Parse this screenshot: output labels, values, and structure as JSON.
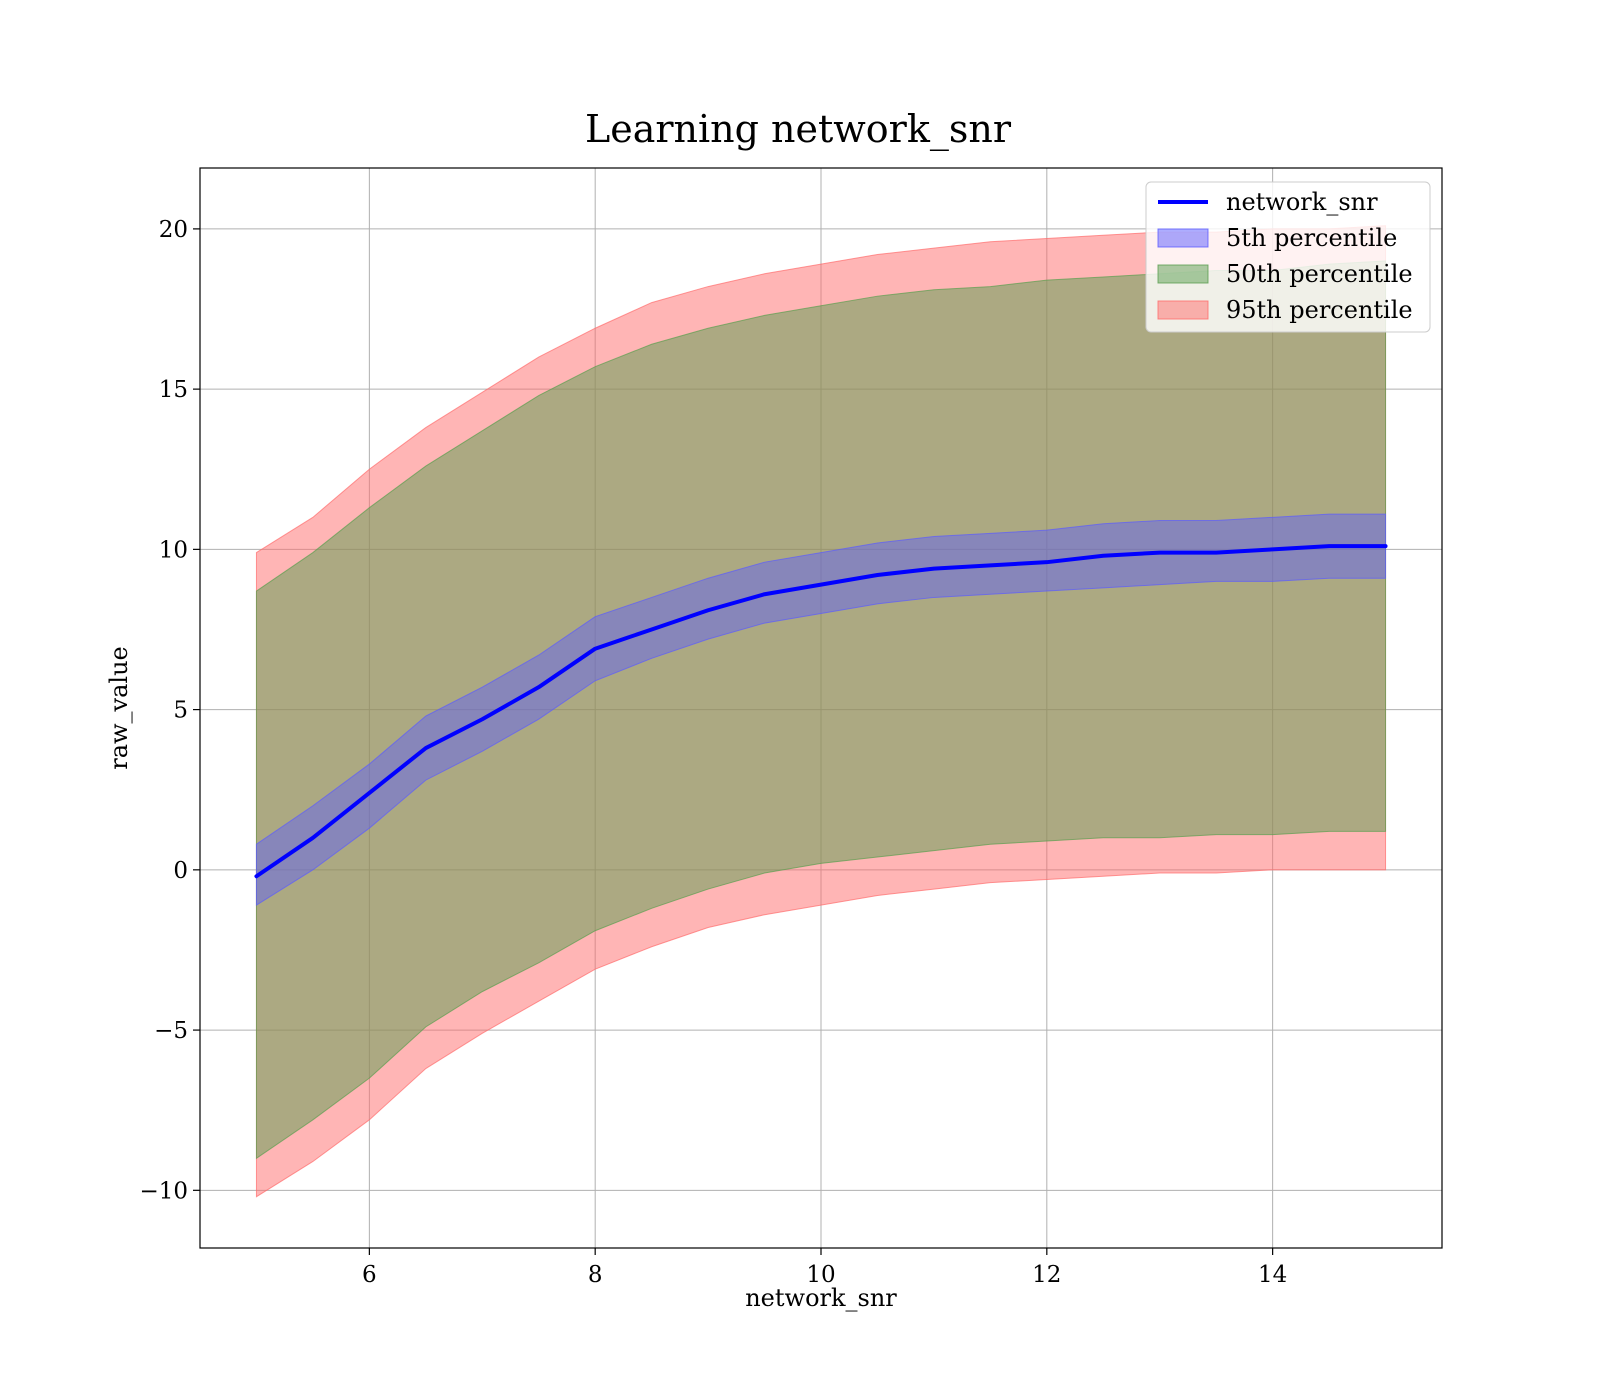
{
  "chart_data": {
    "type": "line",
    "title": "Learning network_snr",
    "xlabel": "network_snr",
    "ylabel": "raw_value",
    "xlim": [
      4.5,
      15.5
    ],
    "ylim": [
      -11.8,
      21.9
    ],
    "xticks": [
      6,
      8,
      10,
      12,
      14
    ],
    "yticks": [
      -10,
      -5,
      0,
      5,
      10,
      15,
      20
    ],
    "xtick_labels": [
      "6",
      "8",
      "10",
      "12",
      "14"
    ],
    "ytick_labels": [
      "−10",
      "−5",
      "0",
      "5",
      "10",
      "15",
      "20"
    ],
    "grid": true,
    "legend_position": "top-right",
    "x": [
      5,
      5.5,
      6,
      6.5,
      7,
      7.5,
      8,
      8.5,
      9,
      9.5,
      10,
      10.5,
      11,
      11.5,
      12,
      12.5,
      13,
      13.5,
      14,
      14.5,
      15
    ],
    "series": [
      {
        "name": "network_snr",
        "kind": "line",
        "color": "#0000ff",
        "values": [
          -0.2,
          1.0,
          2.4,
          3.8,
          4.7,
          5.7,
          6.9,
          7.5,
          8.1,
          8.6,
          8.9,
          9.2,
          9.4,
          9.5,
          9.6,
          9.8,
          9.9,
          9.9,
          10.0,
          10.1,
          10.1
        ]
      },
      {
        "name": "5th percentile",
        "kind": "band",
        "color": "#5b5bff",
        "lower": [
          -1.1,
          0.0,
          1.3,
          2.8,
          3.7,
          4.7,
          5.9,
          6.6,
          7.2,
          7.7,
          8.0,
          8.3,
          8.5,
          8.6,
          8.7,
          8.8,
          8.9,
          9.0,
          9.0,
          9.1,
          9.1
        ],
        "upper": [
          0.8,
          2.0,
          3.3,
          4.8,
          5.7,
          6.7,
          7.9,
          8.5,
          9.1,
          9.6,
          9.9,
          10.2,
          10.4,
          10.5,
          10.6,
          10.8,
          10.9,
          10.9,
          11.0,
          11.1,
          11.1
        ]
      },
      {
        "name": "50th percentile",
        "kind": "band",
        "color": "#5a9e4f",
        "lower": [
          -9.0,
          -7.8,
          -6.5,
          -4.9,
          -3.8,
          -2.9,
          -1.9,
          -1.2,
          -0.6,
          -0.1,
          0.2,
          0.4,
          0.6,
          0.8,
          0.9,
          1.0,
          1.0,
          1.1,
          1.1,
          1.2,
          1.2
        ],
        "upper": [
          8.7,
          9.9,
          11.3,
          12.6,
          13.7,
          14.8,
          15.7,
          16.4,
          16.9,
          17.3,
          17.6,
          17.9,
          18.1,
          18.2,
          18.4,
          18.5,
          18.6,
          18.7,
          18.7,
          18.9,
          19.0
        ]
      },
      {
        "name": "95th percentile",
        "kind": "band",
        "color": "#ff6b6b",
        "lower": [
          -10.2,
          -9.1,
          -7.8,
          -6.2,
          -5.1,
          -4.1,
          -3.1,
          -2.4,
          -1.8,
          -1.4,
          -1.1,
          -0.8,
          -0.6,
          -0.4,
          -0.3,
          -0.2,
          -0.1,
          -0.1,
          0.0,
          0.0,
          0.0
        ],
        "upper": [
          9.9,
          11.0,
          12.5,
          13.8,
          14.9,
          16.0,
          16.9,
          17.7,
          18.2,
          18.6,
          18.9,
          19.2,
          19.4,
          19.6,
          19.7,
          19.8,
          19.9,
          19.9,
          20.0,
          20.0,
          20.1
        ]
      }
    ]
  }
}
